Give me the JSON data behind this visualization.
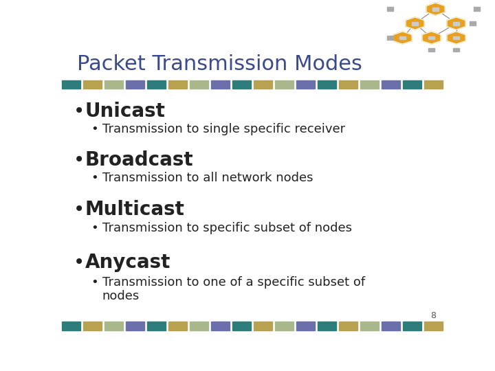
{
  "title": "Packet Transmission Modes",
  "title_color": "#3B4A8A",
  "title_fontsize": 22,
  "background_color": "#FFFFFF",
  "bullet_color": "#222222",
  "main_bullet_fontsize": 20,
  "sub_bullet_fontsize": 13,
  "main_items": [
    {
      "label": "Unicast",
      "sub": "Transmission to single specific receiver"
    },
    {
      "label": "Broadcast",
      "sub": "Transmission to all network nodes"
    },
    {
      "label": "Multicast",
      "sub": "Transmission to specific subset of nodes"
    },
    {
      "label": "Anycast",
      "sub": "Transmission to one of a specific subset of\nnodes"
    }
  ],
  "bar_colors": [
    "#2E7D7A",
    "#B8A252",
    "#A8B88A",
    "#6B6FAA",
    "#2E7D7A",
    "#B8A252",
    "#A8B88A",
    "#6B6FAA",
    "#2E7D7A",
    "#B8A252",
    "#A8B88A",
    "#6B6FAA",
    "#2E7D7A",
    "#B8A252",
    "#A8B88A",
    "#6B6FAA",
    "#2E7D7A",
    "#B8A252"
  ],
  "page_number": "8",
  "page_num_color": "#555555",
  "page_num_fontsize": 9
}
